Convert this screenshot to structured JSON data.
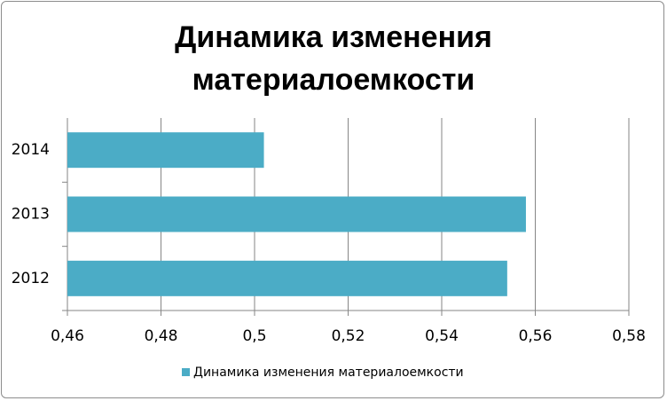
{
  "chart_data": {
    "type": "barh",
    "title": "Динамика изменения материалоемкости",
    "categories": [
      "2012",
      "2013",
      "2014"
    ],
    "series": [
      {
        "name": "Динамика изменения материалоемкости",
        "color": "#4bacc6",
        "values": [
          0.554,
          0.558,
          0.502
        ]
      }
    ],
    "xlim": [
      0.46,
      0.58
    ],
    "xticks": [
      {
        "value": 0.46,
        "label": "0,46"
      },
      {
        "value": 0.48,
        "label": "0,48"
      },
      {
        "value": 0.5,
        "label": "0,5"
      },
      {
        "value": 0.52,
        "label": "0,52"
      },
      {
        "value": 0.54,
        "label": "0,54"
      },
      {
        "value": 0.56,
        "label": "0,56"
      },
      {
        "value": 0.58,
        "label": "0,58"
      }
    ],
    "grid": true,
    "legend": "bottom"
  }
}
